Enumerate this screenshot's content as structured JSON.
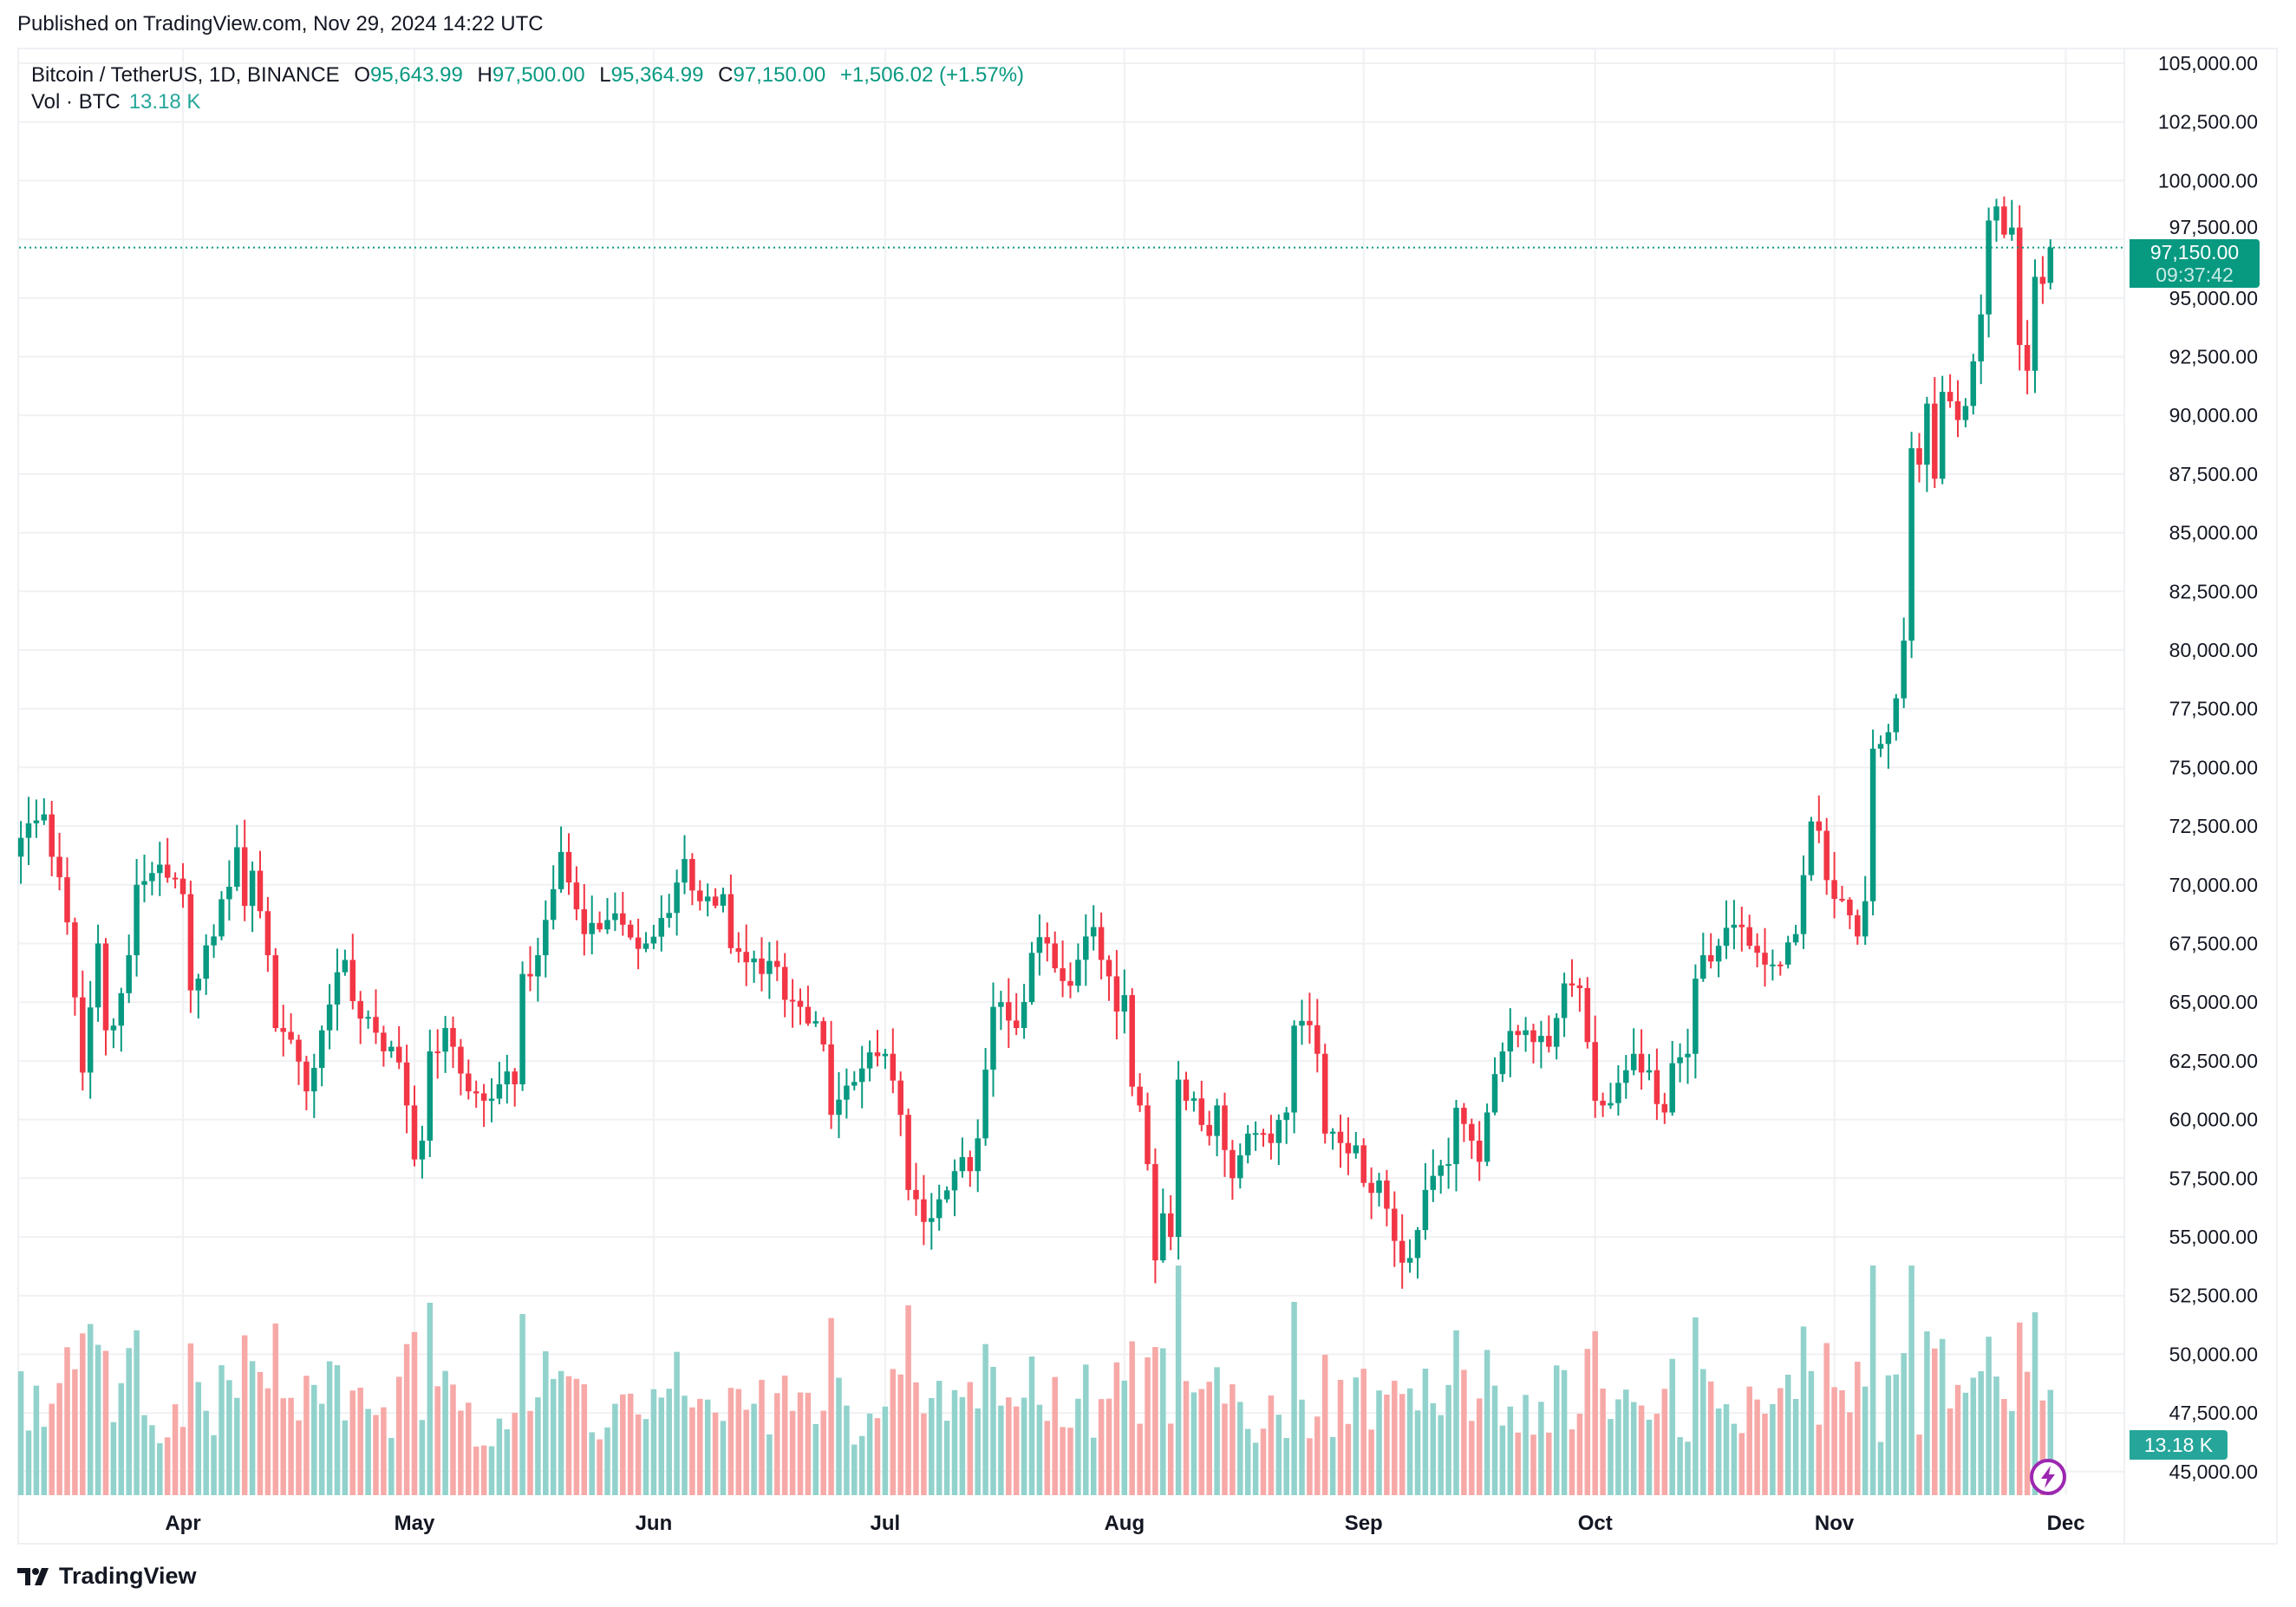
{
  "published": "Published on TradingView.com, Nov 29, 2024 14:22 UTC",
  "legend": {
    "symbol": "Bitcoin / TetherUS, 1D, BINANCE",
    "o_label": "O",
    "o_value": "95,643.99",
    "h_label": "H",
    "h_value": "97,500.00",
    "l_label": "L",
    "l_value": "95,364.99",
    "c_label": "C",
    "c_value": "97,150.00",
    "change": "+1,506.02 (+1.57%)",
    "vol_label": "Vol · BTC",
    "vol_value": "13.18 K"
  },
  "last_price": {
    "price": "97,150.00",
    "countdown": "09:37:42"
  },
  "volume_badge": "13.18 K",
  "brand": "TradingView",
  "colors": {
    "up": "#089981",
    "down": "#F23645",
    "vol_up": "#92d2cc",
    "vol_down": "#f7a9a7",
    "grid": "#f0f1f3"
  },
  "chart_data": {
    "type": "candlestick",
    "title": "Bitcoin / TetherUS, 1D, BINANCE",
    "ylim": [
      45000,
      105000
    ],
    "y_ticks": [
      "105,000.00",
      "102,500.00",
      "100,000.00",
      "97,500.00",
      "95,000.00",
      "92,500.00",
      "90,000.00",
      "87,500.00",
      "85,000.00",
      "82,500.00",
      "80,000.00",
      "77,500.00",
      "75,000.00",
      "72,500.00",
      "70,000.00",
      "67,500.00",
      "65,000.00",
      "62,500.00",
      "60,000.00",
      "57,500.00",
      "55,000.00",
      "52,500.00",
      "50,000.00",
      "47,500.00",
      "45,000.00"
    ],
    "x_ticks": [
      {
        "label": "Apr",
        "date": "2024-04-01"
      },
      {
        "label": "May",
        "date": "2024-05-01"
      },
      {
        "label": "Jun",
        "date": "2024-06-01"
      },
      {
        "label": "Jul",
        "date": "2024-07-01"
      },
      {
        "label": "Aug",
        "date": "2024-08-01"
      },
      {
        "label": "Sep",
        "date": "2024-09-01"
      },
      {
        "label": "Oct",
        "date": "2024-10-01"
      },
      {
        "label": "Nov",
        "date": "2024-11-01"
      },
      {
        "label": "Dec",
        "date": "2024-12-01"
      }
    ],
    "approx_closes": [
      [
        "2024-03-11",
        72000
      ],
      [
        "2024-03-14",
        73000
      ],
      [
        "2024-03-17",
        68400
      ],
      [
        "2024-03-19",
        62000
      ],
      [
        "2024-03-21",
        67500
      ],
      [
        "2024-03-22",
        63800
      ],
      [
        "2024-03-23",
        64000
      ],
      [
        "2024-03-25",
        67000
      ],
      [
        "2024-03-26",
        70000
      ],
      [
        "2024-03-28",
        70500
      ],
      [
        "2024-04-01",
        69600
      ],
      [
        "2024-04-02",
        65500
      ],
      [
        "2024-04-03",
        66000
      ],
      [
        "2024-04-05",
        67800
      ],
      [
        "2024-04-08",
        71600
      ],
      [
        "2024-04-09",
        69100
      ],
      [
        "2024-04-10",
        70600
      ],
      [
        "2024-04-12",
        67000
      ],
      [
        "2024-04-13",
        63900
      ],
      [
        "2024-04-15",
        63400
      ],
      [
        "2024-04-17",
        61200
      ],
      [
        "2024-04-19",
        63800
      ],
      [
        "2024-04-20",
        64900
      ],
      [
        "2024-04-22",
        66800
      ],
      [
        "2024-04-24",
        64300
      ],
      [
        "2024-04-26",
        63700
      ],
      [
        "2024-04-28",
        63100
      ],
      [
        "2024-04-30",
        60600
      ],
      [
        "2024-05-01",
        58300
      ],
      [
        "2024-05-02",
        59100
      ],
      [
        "2024-05-03",
        62900
      ],
      [
        "2024-05-05",
        63900
      ],
      [
        "2024-05-06",
        63100
      ],
      [
        "2024-05-08",
        61200
      ],
      [
        "2024-05-10",
        60800
      ],
      [
        "2024-05-12",
        61500
      ],
      [
        "2024-05-14",
        61500
      ],
      [
        "2024-05-15",
        66200
      ],
      [
        "2024-05-17",
        67000
      ],
      [
        "2024-05-20",
        71400
      ],
      [
        "2024-05-21",
        70100
      ],
      [
        "2024-05-23",
        67900
      ],
      [
        "2024-05-26",
        68500
      ],
      [
        "2024-05-28",
        68300
      ],
      [
        "2024-05-31",
        67500
      ],
      [
        "2024-06-03",
        68800
      ],
      [
        "2024-06-05",
        71100
      ],
      [
        "2024-06-07",
        69300
      ],
      [
        "2024-06-10",
        69600
      ],
      [
        "2024-06-11",
        67300
      ],
      [
        "2024-06-13",
        66700
      ],
      [
        "2024-06-15",
        66200
      ],
      [
        "2024-06-17",
        66500
      ],
      [
        "2024-06-18",
        65100
      ],
      [
        "2024-06-20",
        64800
      ],
      [
        "2024-06-23",
        63200
      ],
      [
        "2024-06-24",
        60200
      ],
      [
        "2024-06-27",
        61600
      ],
      [
        "2024-06-30",
        62700
      ],
      [
        "2024-07-01",
        62800
      ],
      [
        "2024-07-03",
        60200
      ],
      [
        "2024-07-04",
        57000
      ],
      [
        "2024-07-05",
        56600
      ],
      [
        "2024-07-07",
        55800
      ],
      [
        "2024-07-08",
        56600
      ],
      [
        "2024-07-10",
        57800
      ],
      [
        "2024-07-12",
        57800
      ],
      [
        "2024-07-13",
        59200
      ],
      [
        "2024-07-15",
        64800
      ],
      [
        "2024-07-16",
        65000
      ],
      [
        "2024-07-18",
        63900
      ],
      [
        "2024-07-20",
        67100
      ],
      [
        "2024-07-22",
        67500
      ],
      [
        "2024-07-24",
        65900
      ],
      [
        "2024-07-25",
        65700
      ],
      [
        "2024-07-27",
        67800
      ],
      [
        "2024-07-28",
        68200
      ],
      [
        "2024-07-29",
        66800
      ],
      [
        "2024-07-30",
        66100
      ],
      [
        "2024-07-31",
        64600
      ],
      [
        "2024-08-01",
        65300
      ],
      [
        "2024-08-02",
        61400
      ],
      [
        "2024-08-03",
        60600
      ],
      [
        "2024-08-04",
        58100
      ],
      [
        "2024-08-05",
        54000
      ],
      [
        "2024-08-06",
        56000
      ],
      [
        "2024-08-07",
        55000
      ],
      [
        "2024-08-08",
        61700
      ],
      [
        "2024-08-09",
        60800
      ],
      [
        "2024-08-10",
        60900
      ],
      [
        "2024-08-12",
        59300
      ],
      [
        "2024-08-13",
        60600
      ],
      [
        "2024-08-14",
        58700
      ],
      [
        "2024-08-15",
        57500
      ],
      [
        "2024-08-17",
        59400
      ],
      [
        "2024-08-19",
        59400
      ],
      [
        "2024-08-20",
        59000
      ],
      [
        "2024-08-22",
        60300
      ],
      [
        "2024-08-23",
        64000
      ],
      [
        "2024-08-24",
        64200
      ],
      [
        "2024-08-26",
        62800
      ],
      [
        "2024-08-27",
        59400
      ],
      [
        "2024-08-29",
        59000
      ],
      [
        "2024-08-31",
        58900
      ],
      [
        "2024-09-01",
        57300
      ],
      [
        "2024-09-03",
        57400
      ],
      [
        "2024-09-04",
        56200
      ],
      [
        "2024-09-06",
        53900
      ],
      [
        "2024-09-07",
        54100
      ],
      [
        "2024-09-09",
        57000
      ],
      [
        "2024-09-10",
        57600
      ],
      [
        "2024-09-12",
        58100
      ],
      [
        "2024-09-13",
        60500
      ],
      [
        "2024-09-15",
        59100
      ],
      [
        "2024-09-16",
        58200
      ],
      [
        "2024-09-17",
        60300
      ],
      [
        "2024-09-19",
        62900
      ],
      [
        "2024-09-21",
        63600
      ],
      [
        "2024-09-23",
        63300
      ],
      [
        "2024-09-25",
        63100
      ],
      [
        "2024-09-27",
        65800
      ],
      [
        "2024-09-29",
        65600
      ],
      [
        "2024-09-30",
        63300
      ],
      [
        "2024-10-01",
        60800
      ],
      [
        "2024-10-02",
        60600
      ],
      [
        "2024-10-03",
        60700
      ],
      [
        "2024-10-05",
        62100
      ],
      [
        "2024-10-06",
        62800
      ],
      [
        "2024-10-08",
        62100
      ],
      [
        "2024-10-10",
        60300
      ],
      [
        "2024-10-11",
        62400
      ],
      [
        "2024-10-13",
        62800
      ],
      [
        "2024-10-14",
        66000
      ],
      [
        "2024-10-15",
        67000
      ],
      [
        "2024-10-17",
        67400
      ],
      [
        "2024-10-19",
        68300
      ],
      [
        "2024-10-21",
        67400
      ],
      [
        "2024-10-23",
        66600
      ],
      [
        "2024-10-25",
        66600
      ],
      [
        "2024-10-27",
        67900
      ],
      [
        "2024-10-29",
        72700
      ],
      [
        "2024-10-30",
        72300
      ],
      [
        "2024-10-31",
        70200
      ],
      [
        "2024-11-01",
        69400
      ],
      [
        "2024-11-03",
        68700
      ],
      [
        "2024-11-04",
        67800
      ],
      [
        "2024-11-05",
        69300
      ],
      [
        "2024-11-06",
        75800
      ],
      [
        "2024-11-07",
        76000
      ],
      [
        "2024-11-08",
        76500
      ],
      [
        "2024-11-10",
        80400
      ],
      [
        "2024-11-11",
        88600
      ],
      [
        "2024-11-12",
        87900
      ],
      [
        "2024-11-13",
        90500
      ],
      [
        "2024-11-14",
        87300
      ],
      [
        "2024-11-15",
        91000
      ],
      [
        "2024-11-16",
        90600
      ],
      [
        "2024-11-17",
        89800
      ],
      [
        "2024-11-18",
        90400
      ],
      [
        "2024-11-19",
        92300
      ],
      [
        "2024-11-20",
        94300
      ],
      [
        "2024-11-21",
        98300
      ],
      [
        "2024-11-22",
        98900
      ],
      [
        "2024-11-23",
        97700
      ],
      [
        "2024-11-24",
        98000
      ],
      [
        "2024-11-25",
        93000
      ],
      [
        "2024-11-26",
        91900
      ],
      [
        "2024-11-27",
        95900
      ],
      [
        "2024-11-28",
        95600
      ],
      [
        "2024-11-29",
        97150
      ]
    ],
    "last_volume": "13.18 K"
  }
}
